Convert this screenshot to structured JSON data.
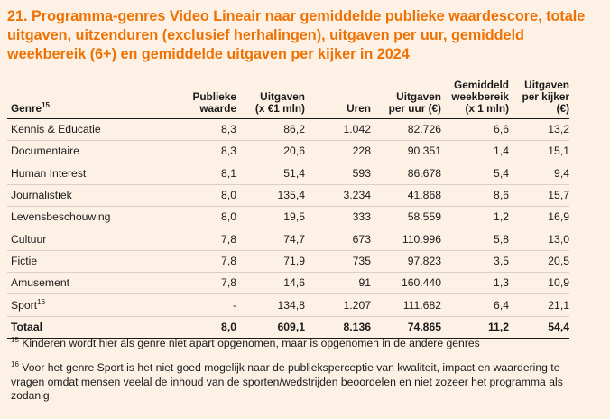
{
  "title": "21. Programma-genres Video Lineair naar gemiddelde publieke waardescore, totale uitgaven, uitzenduren (exclusief herhalingen), uitgaven per uur, gemiddeld weekbereik (6+) en gemiddelde uitgaven per kijker in 2024",
  "table": {
    "headers": {
      "genre": "Genre",
      "genre_sup": "15",
      "publieke_waarde_1": "Publieke",
      "publieke_waarde_2": "waarde",
      "uitgaven_1": "Uitgaven",
      "uitgaven_2": "(x €1 mln)",
      "uren": "Uren",
      "uitgaven_per_uur_1": "Uitgaven",
      "uitgaven_per_uur_2": "per uur (€)",
      "weekbereik_1": "Gemiddeld",
      "weekbereik_2": "weekbereik",
      "weekbereik_3": "(x 1 mln)",
      "per_kijker_1": "Uitgaven",
      "per_kijker_2": "per kijker",
      "per_kijker_3": "(€)"
    },
    "rows": [
      {
        "genre": "Kennis & Educatie",
        "sup": "",
        "pw": "8,3",
        "uit": "86,2",
        "uren": "1.042",
        "upu": "82.726",
        "wb": "6,6",
        "upk": "13,2"
      },
      {
        "genre": "Documentaire",
        "sup": "",
        "pw": "8,3",
        "uit": "20,6",
        "uren": "228",
        "upu": "90.351",
        "wb": "1,4",
        "upk": "15,1"
      },
      {
        "genre": "Human Interest",
        "sup": "",
        "pw": "8,1",
        "uit": "51,4",
        "uren": "593",
        "upu": "86.678",
        "wb": "5,4",
        "upk": "9,4"
      },
      {
        "genre": "Journalistiek",
        "sup": "",
        "pw": "8,0",
        "uit": "135,4",
        "uren": "3.234",
        "upu": "41.868",
        "wb": "8,6",
        "upk": "15,7"
      },
      {
        "genre": "Levensbeschouwing",
        "sup": "",
        "pw": "8,0",
        "uit": "19,5",
        "uren": "333",
        "upu": "58.559",
        "wb": "1,2",
        "upk": "16,9"
      },
      {
        "genre": "Cultuur",
        "sup": "",
        "pw": "7,8",
        "uit": "74,7",
        "uren": "673",
        "upu": "110.996",
        "wb": "5,8",
        "upk": "13,0"
      },
      {
        "genre": "Fictie",
        "sup": "",
        "pw": "7,8",
        "uit": "71,9",
        "uren": "735",
        "upu": "97.823",
        "wb": "3,5",
        "upk": "20,5"
      },
      {
        "genre": "Amusement",
        "sup": "",
        "pw": "7,8",
        "uit": "14,6",
        "uren": "91",
        "upu": "160.440",
        "wb": "1,3",
        "upk": "10,9"
      },
      {
        "genre": "Sport",
        "sup": "16",
        "pw": "-",
        "uit": "134,8",
        "uren": "1.207",
        "upu": "111.682",
        "wb": "6,4",
        "upk": "21,1"
      }
    ],
    "total": {
      "genre": "Totaal",
      "pw": "8,0",
      "uit": "609,1",
      "uren": "8.136",
      "upu": "74.865",
      "wb": "11,2",
      "upk": "54,4"
    }
  },
  "footnotes": {
    "fn15_num": "15",
    "fn15_text": " Kinderen wordt hier als genre niet apart opgenomen, maar is opgenomen in de andere genres",
    "fn16_num": "16",
    "fn16_text": " Voor het genre Sport is het niet goed mogelijk naar de publieksperceptie van kwaliteit, impact en waardering te vragen omdat mensen veelal de inhoud van de sporten/wedstrijden beoordelen en niet zozeer het programma als zodanig."
  },
  "colors": {
    "background": "#fdf1e6",
    "title": "#ee7203",
    "text": "#1a1a1a",
    "row_line": "#d9d0c7"
  }
}
